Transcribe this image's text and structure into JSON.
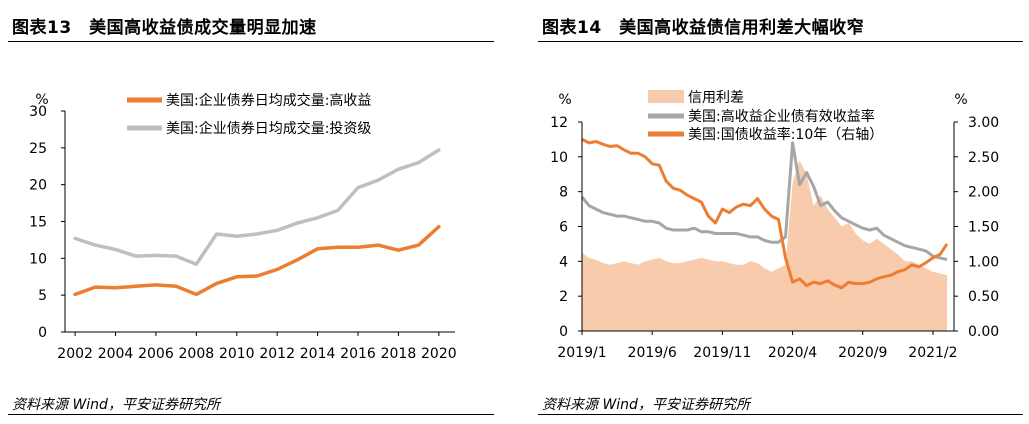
{
  "left_panel": {
    "title": "图表13　美国高收益债成交量明显加速",
    "source": "资料来源 Wind，平安证券研究所"
  },
  "right_panel": {
    "title": "图表14　美国高收益债信用利差大幅收窄",
    "source": "资料来源 Wind，平安证券研究所"
  },
  "chart_data": [
    {
      "type": "line",
      "ylabel": "%",
      "ylim": [
        0,
        30
      ],
      "y_ticks": [
        "0",
        "5",
        "10",
        "15",
        "20",
        "25",
        "30"
      ],
      "x_ticks": [
        "2002",
        "2004",
        "2006",
        "2008",
        "2010",
        "2012",
        "2014",
        "2016",
        "2018",
        "2020"
      ],
      "xlim": [
        2001.5,
        2020.8
      ],
      "legend_position": "top",
      "series": [
        {
          "name": "美国:企业债券日均成交量:高收益",
          "color": "#ED7D31",
          "x": [
            2002,
            2003,
            2004,
            2005,
            2006,
            2007,
            2008,
            2009,
            2010,
            2011,
            2012,
            2013,
            2014,
            2015,
            2016,
            2017,
            2018,
            2019,
            2020
          ],
          "y": [
            5.1,
            6.1,
            6.0,
            6.2,
            6.4,
            6.2,
            5.1,
            6.6,
            7.5,
            7.6,
            8.5,
            9.8,
            11.3,
            11.5,
            11.5,
            11.8,
            11.1,
            11.8,
            14.3
          ]
        },
        {
          "name": "美国:企业债券日均成交量:投资级",
          "color": "#BFBFBF",
          "x": [
            2002,
            2003,
            2004,
            2005,
            2006,
            2007,
            2008,
            2009,
            2010,
            2011,
            2012,
            2013,
            2014,
            2015,
            2016,
            2017,
            2018,
            2019,
            2020
          ],
          "y": [
            12.7,
            11.8,
            11.2,
            10.3,
            10.4,
            10.3,
            9.2,
            13.3,
            13.0,
            13.3,
            13.8,
            14.8,
            15.5,
            16.5,
            19.6,
            20.6,
            22.1,
            23.0,
            24.7
          ]
        }
      ]
    },
    {
      "type": "area",
      "ylabel": "%",
      "y2label": "%",
      "ylim": [
        0,
        12
      ],
      "y2lim": [
        0,
        3
      ],
      "y_ticks": [
        "0",
        "2",
        "4",
        "6",
        "8",
        "10",
        "12"
      ],
      "y2_ticks": [
        "0.00",
        "0.50",
        "1.00",
        "1.50",
        "2.00",
        "2.50",
        "3.00"
      ],
      "x_ticks": [
        "2019/1",
        "2019/6",
        "2019/11",
        "2020/4",
        "2020/9",
        "2021/2"
      ],
      "x_unit": "month index from 2019/1",
      "xlim": [
        0,
        26.5
      ],
      "legend_position": "top",
      "series": [
        {
          "name": "信用利差",
          "type": "area",
          "axis": "left",
          "color": "#F8CBAD",
          "x": [
            0,
            0.5,
            1,
            1.5,
            2,
            2.5,
            3,
            3.5,
            4,
            4.5,
            5,
            5.5,
            6,
            6.5,
            7,
            7.5,
            8,
            8.5,
            9,
            9.5,
            10,
            10.5,
            11,
            11.5,
            12,
            12.5,
            13,
            13.5,
            14,
            14.5,
            15,
            15.5,
            16,
            16.5,
            17,
            17.5,
            18,
            18.5,
            19,
            19.5,
            20,
            20.5,
            21,
            21.5,
            22,
            22.5,
            23,
            23.5,
            24,
            24.5,
            25,
            25.5,
            26
          ],
          "y": [
            4.5,
            4.2,
            4.1,
            3.9,
            3.8,
            3.9,
            4.0,
            3.9,
            3.8,
            4.0,
            4.1,
            4.2,
            4.0,
            3.9,
            3.9,
            4.0,
            4.1,
            4.2,
            4.1,
            4.0,
            4.0,
            3.9,
            3.8,
            3.8,
            4.0,
            3.9,
            3.6,
            3.4,
            3.6,
            3.8,
            8.5,
            9.8,
            9.0,
            7.2,
            7.8,
            7.0,
            6.5,
            6.0,
            6.2,
            5.6,
            5.2,
            5.0,
            5.3,
            5.0,
            4.7,
            4.4,
            4.0,
            4.0,
            3.8,
            3.6,
            3.4,
            3.3,
            3.2
          ]
        },
        {
          "name": "美国:高收益企业债有效收益率",
          "type": "line",
          "axis": "left",
          "color": "#A6A6A6",
          "x": [
            0,
            0.5,
            1,
            1.5,
            2,
            2.5,
            3,
            3.5,
            4,
            4.5,
            5,
            5.5,
            6,
            6.5,
            7,
            7.5,
            8,
            8.5,
            9,
            9.5,
            10,
            10.5,
            11,
            11.5,
            12,
            12.5,
            13,
            13.5,
            14,
            14.5,
            15,
            15.5,
            16,
            16.5,
            17,
            17.5,
            18,
            18.5,
            19,
            19.5,
            20,
            20.5,
            21,
            21.5,
            22,
            22.5,
            23,
            23.5,
            24,
            24.5,
            25,
            25.5,
            26
          ],
          "y": [
            7.7,
            7.2,
            7.0,
            6.8,
            6.7,
            6.6,
            6.6,
            6.5,
            6.4,
            6.3,
            6.3,
            6.2,
            5.9,
            5.8,
            5.8,
            5.8,
            5.9,
            5.7,
            5.7,
            5.6,
            5.6,
            5.6,
            5.6,
            5.5,
            5.4,
            5.4,
            5.2,
            5.1,
            5.1,
            5.4,
            10.8,
            8.4,
            9.1,
            8.3,
            7.2,
            7.4,
            6.9,
            6.5,
            6.3,
            6.1,
            5.9,
            5.8,
            5.9,
            5.5,
            5.3,
            5.1,
            4.9,
            4.8,
            4.7,
            4.6,
            4.3,
            4.2,
            4.1
          ]
        },
        {
          "name": "美国:国债收益率:10年（右轴）",
          "type": "line",
          "axis": "right",
          "color": "#ED7D31",
          "x": [
            0,
            0.5,
            1,
            1.5,
            2,
            2.5,
            3,
            3.5,
            4,
            4.5,
            5,
            5.5,
            6,
            6.5,
            7,
            7.5,
            8,
            8.5,
            9,
            9.5,
            10,
            10.5,
            11,
            11.5,
            12,
            12.5,
            13,
            13.5,
            14,
            14.5,
            15,
            15.5,
            16,
            16.5,
            17,
            17.5,
            18,
            18.5,
            19,
            19.5,
            20,
            20.5,
            21,
            21.5,
            22,
            22.5,
            23,
            23.5,
            24,
            24.5,
            25,
            25.5,
            26
          ],
          "y": [
            2.75,
            2.7,
            2.72,
            2.68,
            2.65,
            2.66,
            2.6,
            2.55,
            2.55,
            2.5,
            2.4,
            2.38,
            2.15,
            2.05,
            2.02,
            1.95,
            1.9,
            1.85,
            1.65,
            1.55,
            1.75,
            1.7,
            1.78,
            1.82,
            1.8,
            1.9,
            1.75,
            1.65,
            1.6,
            1.05,
            0.7,
            0.75,
            0.65,
            0.7,
            0.68,
            0.72,
            0.66,
            0.62,
            0.7,
            0.68,
            0.68,
            0.7,
            0.75,
            0.78,
            0.8,
            0.85,
            0.88,
            0.95,
            0.92,
            0.98,
            1.05,
            1.1,
            1.25
          ]
        }
      ]
    }
  ]
}
